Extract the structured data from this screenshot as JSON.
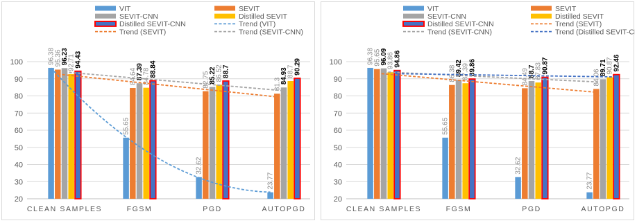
{
  "chart_data": [
    {
      "type": "bar",
      "categories": [
        "CLEAN SAMPLES",
        "FGSM",
        "PGD",
        "AUTOPGD"
      ],
      "ylim": [
        20,
        100
      ],
      "yticks": [
        20,
        30,
        40,
        50,
        60,
        70,
        80,
        90,
        100
      ],
      "grid": true,
      "legend_position": "top",
      "series": [
        {
          "name": "VIT",
          "color": "#5b9bd5",
          "values": [
            96.38,
            55.65,
            32.62,
            23.77
          ],
          "labels": [
            "96.38",
            "55.65",
            "32.62",
            "23.77"
          ]
        },
        {
          "name": "SEVIT",
          "color": "#ed7d31",
          "values": [
            95.36,
            84.64,
            82.75,
            81.3
          ],
          "labels": [
            "95.36",
            "84.64",
            "82.75",
            "81.3"
          ]
        },
        {
          "name": "SEVIT-CNN",
          "color": "#a5a5a5",
          "values": [
            96.23,
            87.39,
            85.22,
            84.93
          ],
          "labels": [
            "96.23",
            "87.39",
            "85.22",
            "84.93"
          ]
        },
        {
          "name": "Distilled SEVIT",
          "color": "#ffc000",
          "values": [
            92.71,
            84.78,
            86.52,
            88.7
          ],
          "labels": [
            "92.71",
            "84.78",
            "86.52",
            "88.7"
          ]
        },
        {
          "name": "Distilled SEVIT-CNN",
          "color": "#4472c4",
          "outline": "#ff0000",
          "values": [
            94.43,
            88.84,
            88.7,
            90.29
          ],
          "labels": [
            "94.43",
            "88.84",
            "88.7",
            "90.29"
          ]
        }
      ],
      "trends": [
        {
          "name": "Trend (VIT)",
          "color": "#5b9bd5",
          "of": "VIT"
        },
        {
          "name": "Trend (SEVIT)",
          "color": "#ed7d31",
          "of": "SEVIT"
        },
        {
          "name": "Trend (SEVIT-CNN)",
          "color": "#a5a5a5",
          "of": "SEVIT-CNN"
        }
      ]
    },
    {
      "type": "bar",
      "categories": [
        "CLEAN SAMPLES",
        "FGSM",
        "PGD",
        "AUTOPGD"
      ],
      "ylim": [
        20,
        100
      ],
      "yticks": [
        20,
        30,
        40,
        50,
        60,
        70,
        80,
        90,
        100
      ],
      "grid": true,
      "legend_position": "top",
      "series": [
        {
          "name": "VIT",
          "color": "#5b9bd5",
          "values": [
            96.38,
            55.65,
            32.62,
            23.77
          ],
          "labels": [
            "96.38",
            "55.65",
            "32.62",
            "23.77"
          ]
        },
        {
          "name": "SEVIT",
          "color": "#ed7d31",
          "values": [
            95.65,
            86.38,
            84.49,
            84.06
          ],
          "labels": [
            "95.65",
            "86.38",
            "84.49",
            "84.06"
          ]
        },
        {
          "name": "SEVIT-CNN",
          "color": "#a5a5a5",
          "values": [
            96.09,
            89.42,
            88.7,
            89.71
          ],
          "labels": [
            "96.09",
            "89.42",
            "88.7",
            "89.71"
          ]
        },
        {
          "name": "Distilled SEVIT",
          "color": "#ffc000",
          "values": [
            93.86,
            87.39,
            87.83,
            90.87
          ],
          "labels": [
            "93.86",
            "87.39",
            "87.83",
            "90.87"
          ]
        },
        {
          "name": "Distilled SEVIT-CNN",
          "color": "#4472c4",
          "outline": "#ff0000",
          "values": [
            94.86,
            89.86,
            90.87,
            92.46
          ],
          "labels": [
            "94.86",
            "89.86",
            "90.87",
            "92.46"
          ]
        }
      ],
      "trends": [
        {
          "name": "Trend (SEVIT)",
          "color": "#ed7d31",
          "of": "SEVIT"
        },
        {
          "name": "Trend (SEVIT-CNN)",
          "color": "#a5a5a5",
          "of": "SEVIT-CNN"
        },
        {
          "name": "Trend (Distilled SEVIT-CNN)",
          "color": "#4472c4",
          "of": "Distilled SEVIT-CNN"
        }
      ]
    }
  ]
}
